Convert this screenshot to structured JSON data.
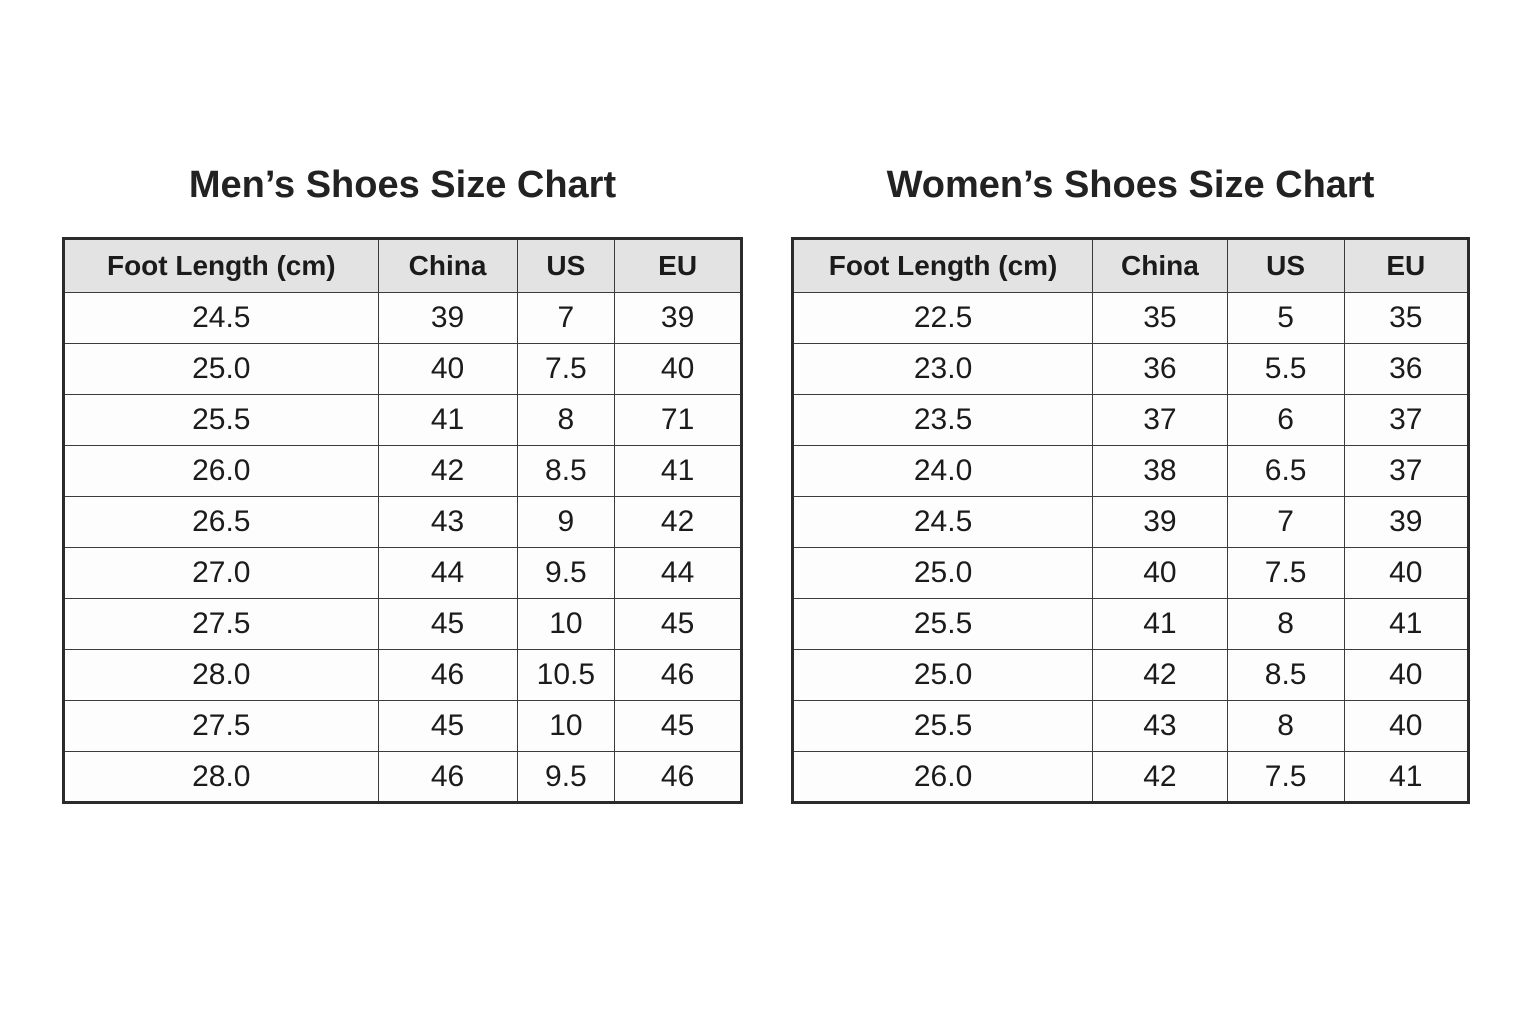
{
  "colors": {
    "page_background": "#ffffff",
    "header_row_background": "#e3e3e3",
    "table_border": "#2b2b2b",
    "text": "#1b1b1b"
  },
  "chart_data": [
    {
      "type": "table",
      "title": "Men’s Shoes Size Chart",
      "columns": [
        "Foot Length (cm)",
        "China",
        "US",
        "EU"
      ],
      "rows": [
        [
          "24.5",
          "39",
          "7",
          "39"
        ],
        [
          "25.0",
          "40",
          "7.5",
          "40"
        ],
        [
          "25.5",
          "41",
          "8",
          "71"
        ],
        [
          "26.0",
          "42",
          "8.5",
          "41"
        ],
        [
          "26.5",
          "43",
          "9",
          "42"
        ],
        [
          "27.0",
          "44",
          "9.5",
          "44"
        ],
        [
          "27.5",
          "45",
          "10",
          "45"
        ],
        [
          "28.0",
          "46",
          "10.5",
          "46"
        ],
        [
          "27.5",
          "45",
          "10",
          "45"
        ],
        [
          "28.0",
          "46",
          "9.5",
          "46"
        ]
      ]
    },
    {
      "type": "table",
      "title": "Women’s Shoes Size Chart",
      "columns": [
        "Foot Length (cm)",
        "China",
        "US",
        "EU"
      ],
      "rows": [
        [
          "22.5",
          "35",
          "5",
          "35"
        ],
        [
          "23.0",
          "36",
          "5.5",
          "36"
        ],
        [
          "23.5",
          "37",
          "6",
          "37"
        ],
        [
          "24.0",
          "38",
          "6.5",
          "37"
        ],
        [
          "24.5",
          "39",
          "7",
          "39"
        ],
        [
          "25.0",
          "40",
          "7.5",
          "40"
        ],
        [
          "25.5",
          "41",
          "8",
          "41"
        ],
        [
          "25.0",
          "42",
          "8.5",
          "40"
        ],
        [
          "25.5",
          "43",
          "8",
          "40"
        ],
        [
          "26.0",
          "42",
          "7.5",
          "41"
        ]
      ]
    }
  ]
}
